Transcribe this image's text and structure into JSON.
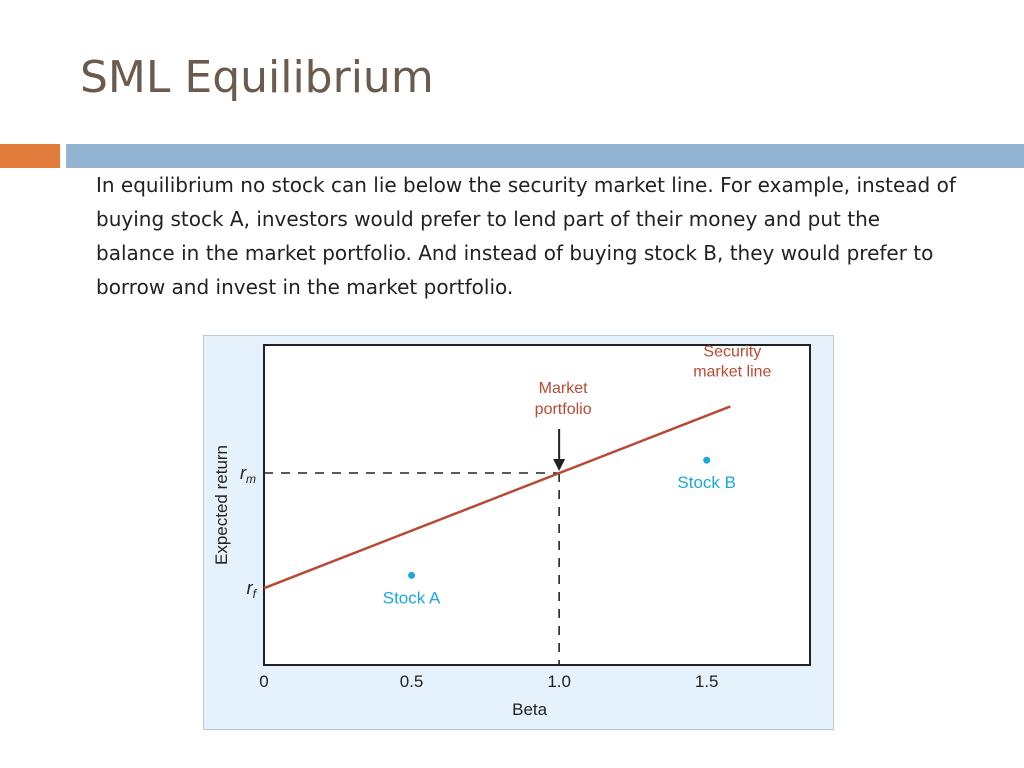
{
  "slide": {
    "title": "SML Equilibrium",
    "body": "In equilibrium no stock can lie below the security market line. For example, instead of buying stock A, investors would prefer to lend part of their money and put the balance in the market portfolio. And instead of buying stock B, they would prefer to borrow and invest in the market portfolio."
  },
  "colors": {
    "title": "#6b5a4e",
    "accent_orange": "#e07b3c",
    "accent_blue": "#93b3d3",
    "chart_background": "#e6f2fb",
    "sml_line": "#b84a33",
    "stock_points": "#1aa7e0"
  },
  "chart_data": {
    "type": "line",
    "title": "",
    "xlabel": "Beta",
    "ylabel": "Expected return",
    "xlim": [
      0,
      1.85
    ],
    "ylim": [
      0,
      1
    ],
    "x_ticks": [
      {
        "value": 0,
        "label": "0"
      },
      {
        "value": 0.5,
        "label": "0.5"
      },
      {
        "value": 1.0,
        "label": "1.0"
      },
      {
        "value": 1.5,
        "label": "1.5"
      }
    ],
    "y_ticks": [
      {
        "value": 0.24,
        "symbol": "r",
        "subscript": "f"
      },
      {
        "value": 0.6,
        "symbol": "r",
        "subscript": "m"
      }
    ],
    "series": [
      {
        "name": "Security market line",
        "label": [
          "Security",
          "market line"
        ],
        "x": [
          0,
          1.58
        ],
        "y": [
          0.24,
          0.808
        ]
      }
    ],
    "points": [
      {
        "name": "Stock A",
        "label": "Stock A",
        "x": 0.5,
        "y": 0.28
      },
      {
        "name": "Stock B",
        "label": "Stock B",
        "x": 1.5,
        "y": 0.64
      }
    ],
    "market_portfolio": {
      "label": [
        "Market",
        "portfolio"
      ],
      "x": 1.0,
      "y": 0.6
    },
    "grid": false,
    "legend": "none"
  }
}
